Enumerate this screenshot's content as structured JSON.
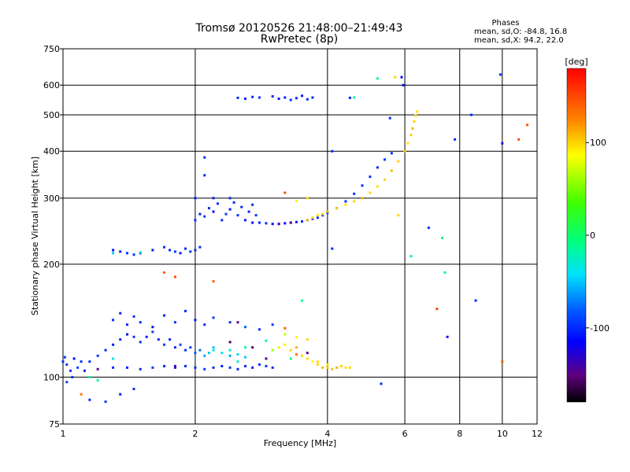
{
  "chart_data": {
    "type": "scatter",
    "title": "Tromsø 20120526 21:48:00–21:49:43",
    "subtitle": "RwPretec (8p)",
    "xlabel": "Frequency [MHz]",
    "ylabel": "Stationary phase Virtual Height [km]",
    "x_scale": "log",
    "y_scale": "log",
    "xlim": [
      1,
      12
    ],
    "ylim": [
      75,
      750
    ],
    "x_ticks": [
      1,
      2,
      4,
      6,
      8,
      10,
      12
    ],
    "x_tick_labels": [
      "1",
      "2",
      "4",
      "6",
      "8",
      "10",
      "12"
    ],
    "x_grid": [
      2,
      4,
      6,
      8,
      10
    ],
    "y_ticks": [
      75,
      100,
      200,
      300,
      400,
      500,
      600,
      750
    ],
    "y_tick_labels": [
      "75",
      "100",
      "200",
      "300",
      "400",
      "500",
      "600",
      "750"
    ],
    "y_grid": [
      100,
      200,
      300,
      400,
      500,
      600
    ],
    "grid": true,
    "phases_note": {
      "heading": "Phases",
      "line1": "mean, sd,O: -84.8, 16.8",
      "line2": "mean, sd,X:  94.2, 22.0"
    },
    "colorbar": {
      "label": "[deg]",
      "range": [
        -180,
        180
      ],
      "ticks": [
        100,
        0,
        -100
      ],
      "tick_labels": [
        "100",
        "0",
        "-100"
      ]
    },
    "series": [
      {
        "points": [
          [
            1.02,
            108,
            -95
          ],
          [
            1.04,
            104,
            -100
          ],
          [
            1.06,
            112,
            -110
          ],
          [
            1.08,
            106,
            -90
          ],
          [
            1.1,
            110,
            -100
          ],
          [
            1.12,
            104,
            -105
          ],
          [
            1.02,
            97,
            -90
          ],
          [
            1.05,
            100,
            -95
          ],
          [
            1.0,
            110,
            -100
          ],
          [
            1.01,
            113,
            -95
          ],
          [
            1.15,
            110,
            -100
          ],
          [
            1.2,
            114,
            -95
          ],
          [
            1.25,
            118,
            -100
          ],
          [
            1.3,
            122,
            -105
          ],
          [
            1.35,
            126,
            -100
          ],
          [
            1.4,
            130,
            -110
          ],
          [
            1.45,
            128,
            -95
          ],
          [
            1.5,
            124,
            -100
          ],
          [
            1.55,
            128,
            -105
          ],
          [
            1.6,
            132,
            -90
          ],
          [
            1.65,
            126,
            -100
          ],
          [
            1.7,
            122,
            -95
          ],
          [
            1.75,
            126,
            -100
          ],
          [
            1.8,
            120,
            -100
          ],
          [
            1.85,
            122,
            -90
          ],
          [
            1.9,
            118,
            -95
          ],
          [
            1.95,
            120,
            -90
          ],
          [
            2.0,
            116,
            -80
          ],
          [
            2.05,
            118,
            -75
          ],
          [
            2.1,
            114,
            -60
          ],
          [
            2.15,
            116,
            -50
          ],
          [
            2.2,
            118,
            -40
          ],
          [
            2.3,
            116,
            -35
          ],
          [
            2.4,
            118,
            -40
          ],
          [
            2.5,
            115,
            -45
          ],
          [
            2.6,
            113,
            -50
          ],
          [
            1.3,
            106,
            -100
          ],
          [
            1.4,
            106,
            -105
          ],
          [
            1.5,
            105,
            -100
          ],
          [
            1.6,
            106,
            -95
          ],
          [
            1.7,
            107,
            -100
          ],
          [
            1.8,
            106,
            -105
          ],
          [
            1.9,
            107,
            -100
          ],
          [
            2.0,
            106,
            -100
          ],
          [
            2.1,
            105,
            -95
          ],
          [
            2.2,
            106,
            -100
          ],
          [
            2.3,
            107,
            -105
          ],
          [
            2.4,
            106,
            -95
          ],
          [
            2.5,
            105,
            -100
          ],
          [
            2.6,
            107,
            -100
          ],
          [
            2.7,
            106,
            -105
          ],
          [
            2.8,
            108,
            -100
          ],
          [
            2.9,
            107,
            -95
          ],
          [
            3.0,
            106,
            -100
          ],
          [
            1.3,
            142,
            -100
          ],
          [
            1.35,
            148,
            -105
          ],
          [
            1.4,
            138,
            -100
          ],
          [
            1.45,
            145,
            -95
          ],
          [
            1.5,
            140,
            -100
          ],
          [
            1.6,
            136,
            -110
          ],
          [
            1.7,
            146,
            -100
          ],
          [
            1.8,
            140,
            -95
          ],
          [
            1.9,
            150,
            -100
          ],
          [
            2.0,
            142,
            -105
          ],
          [
            2.1,
            138,
            -100
          ],
          [
            2.2,
            144,
            -95
          ],
          [
            2.4,
            140,
            -100
          ],
          [
            2.6,
            136,
            -80
          ],
          [
            2.8,
            134,
            -100
          ],
          [
            3.0,
            138,
            -95
          ],
          [
            1.15,
            87,
            -100
          ],
          [
            1.25,
            86,
            -95
          ],
          [
            1.35,
            90,
            -105
          ],
          [
            1.45,
            93,
            -100
          ],
          [
            1.3,
            218,
            -110
          ],
          [
            1.35,
            216,
            -105
          ],
          [
            1.4,
            214,
            -100
          ],
          [
            1.45,
            212,
            -95
          ],
          [
            1.5,
            214,
            -100
          ],
          [
            1.6,
            218,
            -105
          ],
          [
            1.7,
            222,
            -100
          ],
          [
            1.75,
            218,
            -100
          ],
          [
            1.8,
            216,
            -95
          ],
          [
            1.85,
            214,
            -105
          ],
          [
            1.9,
            220,
            -100
          ],
          [
            1.95,
            216,
            -95
          ],
          [
            2.0,
            218,
            -100
          ],
          [
            2.05,
            222,
            -100
          ],
          [
            2.0,
            262,
            -100
          ],
          [
            2.05,
            272,
            -105
          ],
          [
            2.1,
            268,
            -95
          ],
          [
            2.15,
            282,
            -100
          ],
          [
            2.2,
            276,
            -110
          ],
          [
            2.25,
            290,
            -100
          ],
          [
            2.3,
            262,
            -100
          ],
          [
            2.35,
            272,
            -95
          ],
          [
            2.4,
            280,
            -105
          ],
          [
            2.45,
            292,
            -100
          ],
          [
            2.5,
            270,
            -95
          ],
          [
            2.55,
            284,
            -100
          ],
          [
            2.6,
            262,
            -105
          ],
          [
            2.65,
            276,
            -100
          ],
          [
            2.7,
            288,
            -100
          ],
          [
            2.75,
            270,
            -95
          ],
          [
            2.7,
            258,
            -110
          ],
          [
            2.8,
            258,
            -105
          ],
          [
            2.9,
            257,
            -100
          ],
          [
            3.0,
            256,
            -115
          ],
          [
            3.1,
            256,
            -120
          ],
          [
            3.2,
            257,
            -115
          ],
          [
            3.3,
            258,
            -110
          ],
          [
            3.4,
            259,
            -105
          ],
          [
            3.5,
            260,
            -100
          ],
          [
            3.6,
            262,
            -100
          ],
          [
            3.7,
            264,
            -95
          ],
          [
            3.8,
            266,
            -100
          ],
          [
            3.9,
            270,
            -100
          ],
          [
            4.0,
            274,
            -95
          ],
          [
            4.2,
            282,
            -100
          ],
          [
            4.4,
            294,
            -100
          ],
          [
            4.6,
            308,
            -95
          ],
          [
            4.8,
            324,
            -100
          ],
          [
            5.0,
            342,
            -100
          ],
          [
            5.2,
            362,
            -100
          ],
          [
            5.4,
            380,
            -95
          ],
          [
            5.6,
            395,
            -100
          ],
          [
            2.5,
            555,
            -100
          ],
          [
            2.6,
            552,
            -105
          ],
          [
            2.7,
            558,
            -100
          ],
          [
            2.8,
            556,
            -95
          ],
          [
            3.0,
            560,
            -100
          ],
          [
            3.1,
            552,
            -105
          ],
          [
            3.2,
            556,
            -100
          ],
          [
            3.3,
            548,
            -95
          ],
          [
            3.4,
            554,
            -100
          ],
          [
            3.5,
            562,
            -105
          ],
          [
            3.6,
            550,
            -100
          ],
          [
            3.7,
            556,
            -100
          ],
          [
            2.1,
            385,
            -100
          ],
          [
            2.1,
            345,
            -100
          ],
          [
            4.1,
            400,
            -100
          ],
          [
            4.5,
            555,
            -100
          ],
          [
            4.1,
            220,
            -100
          ],
          [
            5.55,
            490,
            -100
          ],
          [
            5.9,
            630,
            -110
          ],
          [
            5.95,
            600,
            -110
          ],
          [
            6.8,
            250,
            -100
          ],
          [
            7.8,
            430,
            -100
          ],
          [
            8.5,
            500,
            -100
          ],
          [
            9.9,
            640,
            -100
          ],
          [
            10.0,
            420,
            -110
          ],
          [
            8.7,
            160,
            -100
          ],
          [
            7.5,
            128,
            -110
          ],
          [
            5.3,
            96,
            -100
          ],
          [
            2.0,
            300,
            -100
          ],
          [
            2.2,
            300,
            -105
          ],
          [
            2.4,
            300,
            -100
          ]
        ]
      },
      {
        "points": [
          [
            1.15,
            100,
            -10
          ],
          [
            1.2,
            98,
            -20
          ],
          [
            1.3,
            112,
            -40
          ],
          [
            2.5,
            110,
            -30
          ],
          [
            2.6,
            120,
            -20
          ],
          [
            2.9,
            125,
            -20
          ],
          [
            3.2,
            130,
            -15
          ],
          [
            3.5,
            160,
            -10
          ],
          [
            3.3,
            112,
            -5
          ],
          [
            2.2,
            120,
            -50
          ],
          [
            2.4,
            114,
            -60
          ],
          [
            5.2,
            625,
            -10
          ],
          [
            4.6,
            556,
            -20
          ],
          [
            7.3,
            235,
            -5
          ],
          [
            7.4,
            190,
            -20
          ],
          [
            6.2,
            210,
            -30
          ],
          [
            1.3,
            214,
            -50
          ],
          [
            1.5,
            215,
            -30
          ]
        ]
      },
      {
        "points": [
          [
            3.0,
            118,
            60
          ],
          [
            3.1,
            120,
            80
          ],
          [
            3.2,
            122,
            90
          ],
          [
            3.3,
            118,
            100
          ],
          [
            3.4,
            120,
            110
          ],
          [
            3.5,
            114,
            100
          ],
          [
            3.6,
            112,
            95
          ],
          [
            3.7,
            110,
            90
          ],
          [
            3.8,
            108,
            100
          ],
          [
            3.9,
            106,
            110
          ],
          [
            4.0,
            106,
            100
          ],
          [
            4.1,
            105,
            105
          ],
          [
            4.2,
            106,
            110
          ],
          [
            4.3,
            107,
            100
          ],
          [
            4.4,
            106,
            95
          ],
          [
            4.5,
            106,
            100
          ],
          [
            3.2,
            130,
            80
          ],
          [
            3.4,
            128,
            90
          ],
          [
            3.6,
            126,
            100
          ],
          [
            3.8,
            110,
            100
          ],
          [
            4.0,
            108,
            95
          ],
          [
            3.6,
            262,
            110
          ],
          [
            3.7,
            266,
            100
          ],
          [
            3.8,
            270,
            95
          ],
          [
            3.9,
            272,
            100
          ],
          [
            4.0,
            276,
            110
          ],
          [
            4.2,
            282,
            100
          ],
          [
            4.4,
            288,
            95
          ],
          [
            4.6,
            294,
            100
          ],
          [
            4.8,
            300,
            110
          ],
          [
            5.0,
            310,
            100
          ],
          [
            5.2,
            322,
            95
          ],
          [
            5.4,
            336,
            100
          ],
          [
            5.6,
            355,
            110
          ],
          [
            5.8,
            376,
            100
          ],
          [
            6.0,
            400,
            100
          ],
          [
            6.1,
            420,
            95
          ],
          [
            6.2,
            442,
            100
          ],
          [
            6.25,
            460,
            110
          ],
          [
            6.3,
            480,
            100
          ],
          [
            6.35,
            498,
            100
          ],
          [
            6.4,
            510,
            95
          ],
          [
            5.7,
            630,
            100
          ],
          [
            3.4,
            295,
            90
          ],
          [
            3.6,
            300,
            95
          ],
          [
            5.8,
            270,
            100
          ]
        ]
      },
      {
        "points": [
          [
            3.2,
            135,
            140
          ],
          [
            3.4,
            115,
            130
          ],
          [
            1.7,
            190,
            140
          ],
          [
            1.8,
            185,
            150
          ],
          [
            2.2,
            180,
            140
          ],
          [
            3.2,
            310,
            145
          ],
          [
            7.1,
            152,
            150
          ],
          [
            10.9,
            430,
            150
          ],
          [
            11.4,
            470,
            145
          ],
          [
            10.0,
            110,
            140
          ],
          [
            1.1,
            90,
            130
          ]
        ]
      },
      {
        "points": [
          [
            3.3,
            258,
            -150
          ],
          [
            3.1,
            256,
            -140
          ],
          [
            2.5,
            140,
            -150
          ],
          [
            2.4,
            124,
            -160
          ],
          [
            3.6,
            116,
            -150
          ],
          [
            2.7,
            120,
            -145
          ],
          [
            1.2,
            105,
            -150
          ],
          [
            1.8,
            107,
            -140
          ],
          [
            2.9,
            112,
            -150
          ]
        ]
      }
    ]
  }
}
